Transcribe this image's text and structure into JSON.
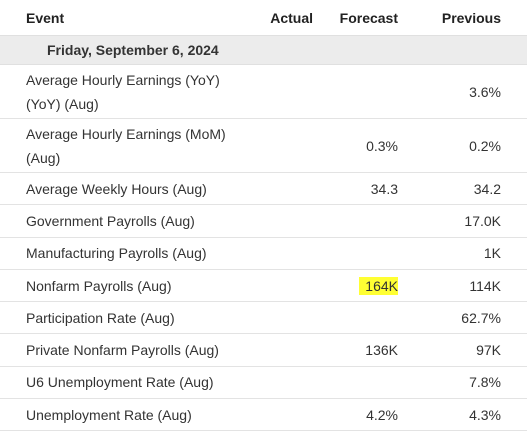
{
  "header": {
    "event": "Event",
    "actual": "Actual",
    "forecast": "Forecast",
    "previous": "Previous"
  },
  "date_label": "Friday, September 6, 2024",
  "rows": [
    {
      "event": "Average Hourly Earnings (YoY) (YoY) (Aug)",
      "actual": "",
      "forecast": "",
      "previous": "3.6%"
    },
    {
      "event": "Average Hourly Earnings (MoM) (Aug)",
      "actual": "",
      "forecast": "0.3%",
      "previous": "0.2%"
    },
    {
      "event": "Average Weekly Hours (Aug)",
      "actual": "",
      "forecast": "34.3",
      "previous": "34.2"
    },
    {
      "event": "Government Payrolls (Aug)",
      "actual": "",
      "forecast": "",
      "previous": "17.0K"
    },
    {
      "event": "Manufacturing Payrolls (Aug)",
      "actual": "",
      "forecast": "",
      "previous": "1K"
    },
    {
      "event": "Nonfarm Payrolls (Aug)",
      "actual": "",
      "forecast": "164K",
      "previous": "114K"
    },
    {
      "event": "Participation Rate (Aug)",
      "actual": "",
      "forecast": "",
      "previous": "62.7%"
    },
    {
      "event": "Private Nonfarm Payrolls (Aug)",
      "actual": "",
      "forecast": "136K",
      "previous": "97K"
    },
    {
      "event": "U6 Unemployment Rate (Aug)",
      "actual": "",
      "forecast": "",
      "previous": "7.8%"
    },
    {
      "event": "Unemployment Rate (Aug)",
      "actual": "",
      "forecast": "4.2%",
      "previous": "4.3%"
    }
  ],
  "colors": {
    "highlight": "#ffff33",
    "date_row_bg": "#ececec"
  }
}
